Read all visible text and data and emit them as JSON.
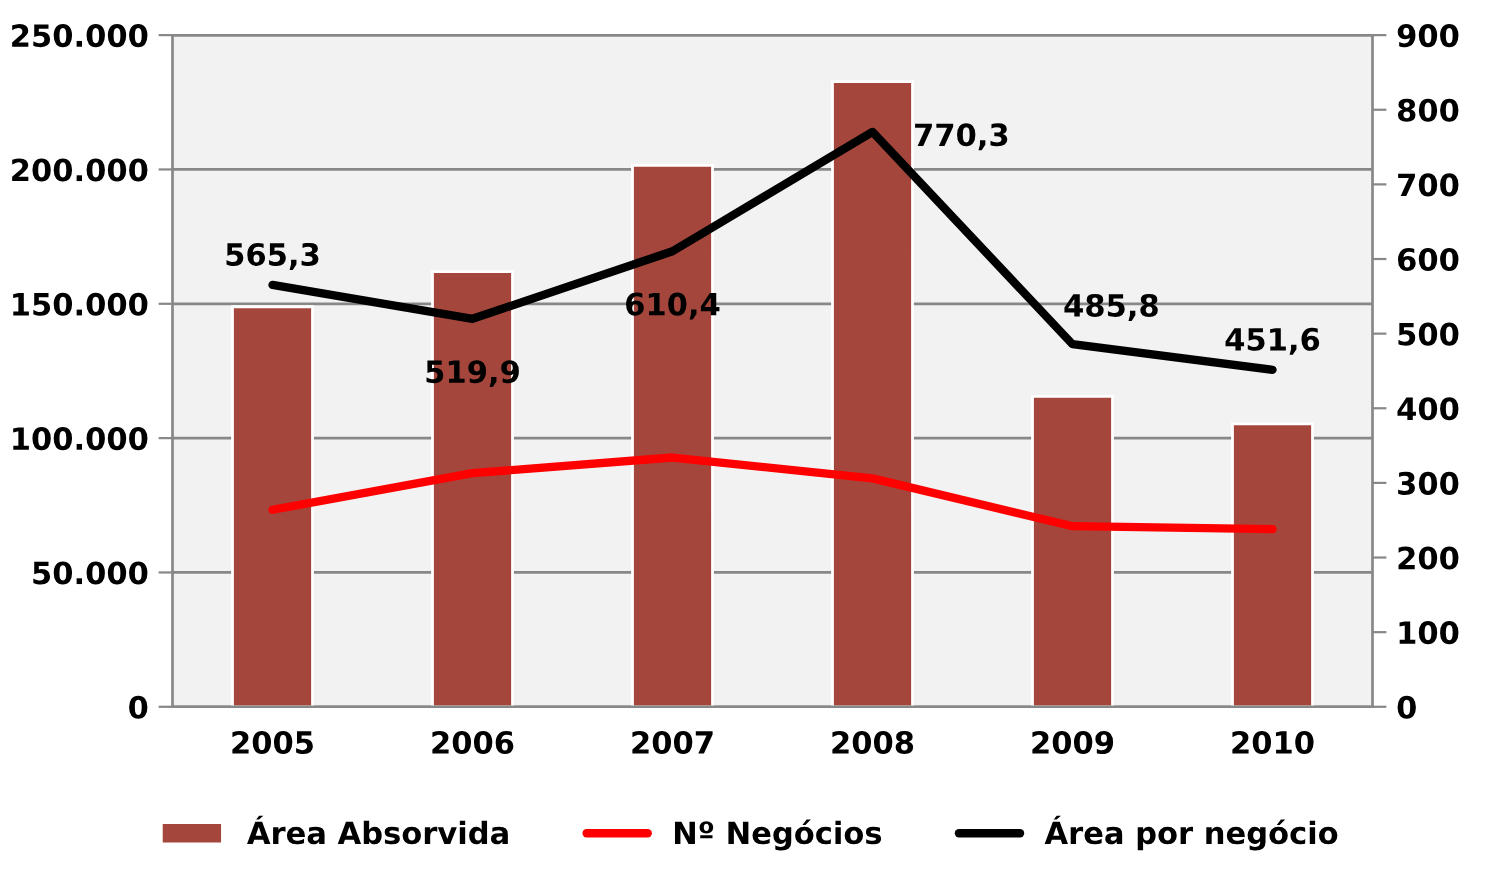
{
  "chart_data": {
    "type": "bar",
    "categories": [
      "2005",
      "2006",
      "2007",
      "2008",
      "2009",
      "2010"
    ],
    "series": [
      {
        "name": "Área Absorvida",
        "color": "#a5463c",
        "values": [
          148900,
          162000,
          201500,
          232700,
          115500,
          105300
        ]
      },
      {
        "name": "Nº Negócios",
        "type": "line",
        "axis": "y2",
        "color": "#ff0000",
        "values": [
          264,
          313,
          334,
          306,
          242,
          238
        ]
      },
      {
        "name": "Área por negócio",
        "type": "line",
        "axis": "y2",
        "color": "#000000",
        "values": [
          565.3,
          519.9,
          610.4,
          770.3,
          485.8,
          451.6
        ],
        "value_labels": [
          "565,3",
          "519,9",
          "610,4",
          "770,3",
          "485,8",
          "451,6"
        ]
      }
    ],
    "ylim": [
      0,
      250000
    ],
    "yticks": [
      {
        "value": 0,
        "label": "0"
      },
      {
        "value": 50000,
        "label": "50.000"
      },
      {
        "value": 100000,
        "label": "100.000"
      },
      {
        "value": 150000,
        "label": "150.000"
      },
      {
        "value": 200000,
        "label": "200.000"
      },
      {
        "value": 250000,
        "label": "250.000"
      }
    ],
    "y2lim": [
      0,
      900
    ],
    "y2ticks": [
      0,
      100,
      200,
      300,
      400,
      500,
      600,
      700,
      800,
      900
    ],
    "grid": "y",
    "legend": "bottom",
    "marker": "none",
    "line_style": "solid"
  }
}
